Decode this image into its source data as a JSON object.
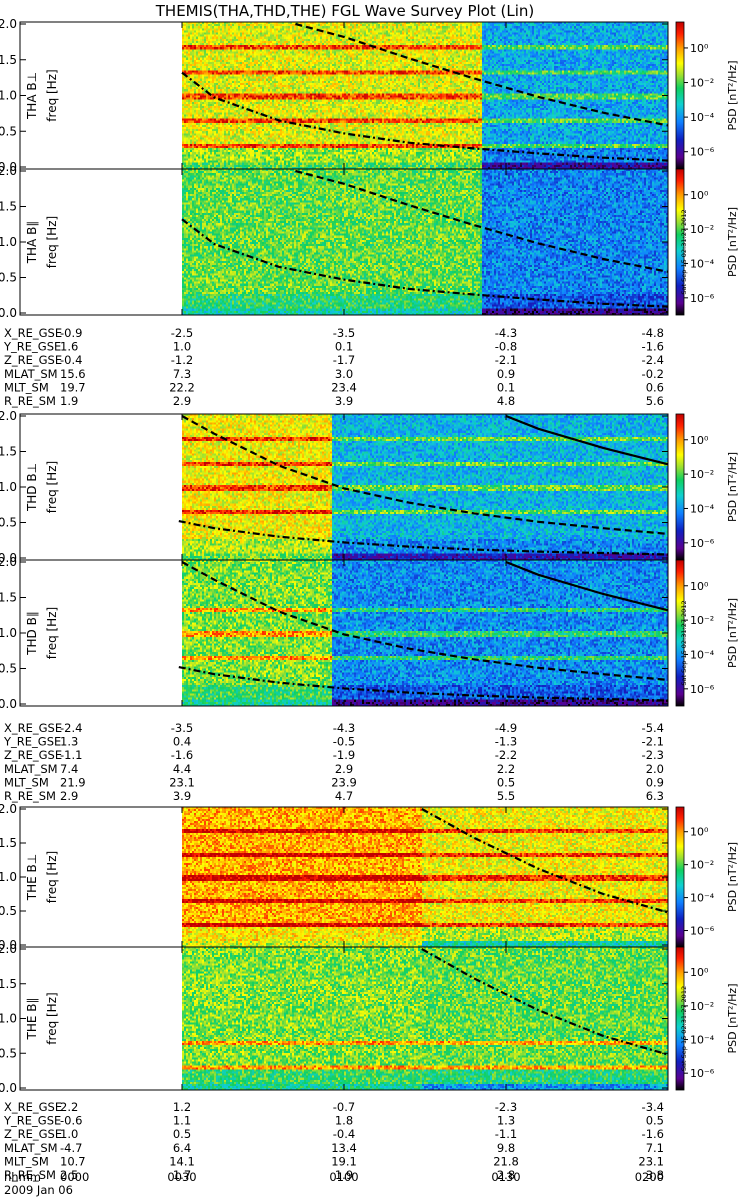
{
  "title": "THEMIS(THA,THD,THE) FGL Wave Survey Plot (Lin)",
  "timestamp_label": "Sat Sep 15 02:31:27 2012",
  "chart_data": {
    "type": "heatmap",
    "x_time_labels": [
      "0000",
      "0030",
      "0100",
      "0130",
      "0200"
    ],
    "x_hours": [
      0,
      0.5,
      1.0,
      1.5,
      2.0
    ],
    "x_axis_label": "hhmm",
    "date": "2009 Jan 06",
    "freq_axis_label": "freq [Hz]",
    "freq_range": [
      0,
      2.0
    ],
    "freq_ticks": [
      "0.0",
      "0.5",
      "1.0",
      "1.5",
      "2.0"
    ],
    "colorbar": {
      "label": "PSD [nT²/Hz]",
      "scale": "log",
      "range_exp": [
        -7,
        1.5
      ],
      "ticks": [
        "10⁰",
        "10⁻²",
        "10⁻⁴",
        "10⁻⁶"
      ],
      "tick_exps": [
        0,
        -2,
        -4,
        -6
      ],
      "colors": [
        "#000000",
        "#5a0090",
        "#1020c0",
        "#1080ff",
        "#10d0d0",
        "#10d060",
        "#a0e030",
        "#ffff00",
        "#ffa000",
        "#ff2000",
        "#c00000"
      ]
    },
    "panels": [
      {
        "name": "THA B⊥",
        "data_start_h": 0.5,
        "regime_change_h": 1.42,
        "left_intensity": 0.7,
        "right_intensity": 0.38,
        "lines_h": [
          1.67,
          1.33,
          1.0,
          0.67,
          0.33
        ],
        "curves": [
          {
            "style": "dash",
            "points": [
              [
                0.85,
                2.0
              ],
              [
                1.0,
                1.82
              ],
              [
                1.2,
                1.52
              ],
              [
                1.4,
                1.24
              ],
              [
                1.6,
                0.98
              ],
              [
                1.8,
                0.76
              ],
              [
                2.0,
                0.58
              ]
            ]
          },
          {
            "style": "dashdot",
            "points": [
              [
                0.5,
                1.32
              ],
              [
                0.6,
                0.97
              ],
              [
                0.8,
                0.65
              ],
              [
                1.0,
                0.47
              ],
              [
                1.2,
                0.34
              ],
              [
                1.4,
                0.26
              ],
              [
                1.6,
                0.19
              ],
              [
                1.8,
                0.13
              ],
              [
                2.0,
                0.09
              ]
            ]
          }
        ]
      },
      {
        "name": "THA B∥",
        "data_start_h": 0.5,
        "regime_change_h": 1.42,
        "left_intensity": 0.6,
        "right_intensity": 0.33,
        "lines_h": [],
        "curves": [
          {
            "style": "dash",
            "points": [
              [
                0.85,
                2.0
              ],
              [
                1.0,
                1.82
              ],
              [
                1.2,
                1.52
              ],
              [
                1.4,
                1.24
              ],
              [
                1.6,
                0.98
              ],
              [
                1.8,
                0.76
              ],
              [
                2.0,
                0.58
              ]
            ]
          },
          {
            "style": "dashdot",
            "points": [
              [
                0.5,
                1.32
              ],
              [
                0.6,
                0.97
              ],
              [
                0.8,
                0.65
              ],
              [
                1.0,
                0.47
              ],
              [
                1.2,
                0.34
              ],
              [
                1.4,
                0.26
              ],
              [
                1.6,
                0.19
              ],
              [
                1.8,
                0.13
              ],
              [
                2.0,
                0.09
              ]
            ]
          }
        ]
      },
      {
        "name": "THD B⊥",
        "data_start_h": 0.5,
        "regime_change_h": 0.96,
        "left_intensity": 0.72,
        "right_intensity": 0.4,
        "lines_h": [
          1.67,
          1.33,
          1.0,
          0.67
        ],
        "curves": [
          {
            "style": "solid",
            "points": [
              [
                1.5,
                2.0
              ],
              [
                1.6,
                1.82
              ],
              [
                1.8,
                1.55
              ],
              [
                2.0,
                1.32
              ]
            ]
          },
          {
            "style": "dash",
            "points": [
              [
                0.5,
                2.0
              ],
              [
                0.6,
                1.75
              ],
              [
                0.8,
                1.3
              ],
              [
                1.0,
                0.98
              ],
              [
                1.2,
                0.78
              ],
              [
                1.4,
                0.63
              ],
              [
                1.6,
                0.51
              ],
              [
                1.8,
                0.42
              ],
              [
                2.0,
                0.34
              ]
            ]
          },
          {
            "style": "dashdot",
            "points": [
              [
                0.49,
                0.52
              ],
              [
                0.6,
                0.42
              ],
              [
                0.8,
                0.3
              ],
              [
                1.0,
                0.22
              ],
              [
                1.2,
                0.16
              ],
              [
                1.4,
                0.12
              ],
              [
                1.6,
                0.09
              ],
              [
                1.8,
                0.07
              ],
              [
                2.0,
                0.05
              ]
            ]
          }
        ]
      },
      {
        "name": "THD B∥",
        "data_start_h": 0.5,
        "regime_change_h": 0.96,
        "left_intensity": 0.62,
        "right_intensity": 0.34,
        "lines_h": [
          1.33,
          1.0,
          0.67
        ],
        "curves": [
          {
            "style": "solid",
            "points": [
              [
                1.5,
                2.0
              ],
              [
                1.6,
                1.82
              ],
              [
                1.8,
                1.55
              ],
              [
                2.0,
                1.32
              ]
            ]
          },
          {
            "style": "dash",
            "points": [
              [
                0.5,
                2.0
              ],
              [
                0.6,
                1.75
              ],
              [
                0.8,
                1.3
              ],
              [
                1.0,
                0.98
              ],
              [
                1.2,
                0.78
              ],
              [
                1.4,
                0.63
              ],
              [
                1.6,
                0.51
              ],
              [
                1.8,
                0.42
              ],
              [
                2.0,
                0.34
              ]
            ]
          },
          {
            "style": "dashdot",
            "points": [
              [
                0.49,
                0.52
              ],
              [
                0.6,
                0.42
              ],
              [
                0.8,
                0.3
              ],
              [
                1.0,
                0.22
              ],
              [
                1.2,
                0.16
              ],
              [
                1.4,
                0.12
              ],
              [
                1.6,
                0.09
              ],
              [
                1.8,
                0.07
              ],
              [
                2.0,
                0.05
              ]
            ]
          }
        ]
      },
      {
        "name": "THE B⊥",
        "data_start_h": 0.5,
        "regime_change_h": 1.24,
        "left_intensity": 0.8,
        "right_intensity": 0.72,
        "lines_h": [
          1.67,
          1.33,
          1.0,
          0.67,
          0.33
        ],
        "curves": [
          {
            "style": "dashdot",
            "points": [
              [
                1.24,
                2.0
              ],
              [
                1.4,
                1.58
              ],
              [
                1.6,
                1.12
              ],
              [
                1.8,
                0.75
              ],
              [
                2.0,
                0.48
              ]
            ]
          }
        ]
      },
      {
        "name": "THE B∥",
        "data_start_h": 0.5,
        "regime_change_h": 1.24,
        "left_intensity": 0.62,
        "right_intensity": 0.6,
        "lines_h": [
          0.67,
          0.33
        ],
        "curves": [
          {
            "style": "dashdot",
            "points": [
              [
                1.24,
                2.0
              ],
              [
                1.4,
                1.58
              ],
              [
                1.6,
                1.12
              ],
              [
                1.8,
                0.75
              ],
              [
                2.0,
                0.48
              ]
            ]
          }
        ]
      }
    ]
  },
  "orbit_tables": [
    {
      "rows": [
        {
          "label": "X_RE_GSE",
          "values": [
            "-0.9",
            "-2.5",
            "-3.5",
            "-4.3",
            "-4.8"
          ]
        },
        {
          "label": "Y_RE_GSE",
          "values": [
            "1.6",
            "1.0",
            "0.1",
            "-0.8",
            "-1.6"
          ]
        },
        {
          "label": "Z_RE_GSE",
          "values": [
            "-0.4",
            "-1.2",
            "-1.7",
            "-2.1",
            "-2.4"
          ]
        },
        {
          "label": "MLAT_SM",
          "values": [
            "15.6",
            "7.3",
            "3.0",
            "0.9",
            "-0.2"
          ]
        },
        {
          "label": "MLT_SM",
          "values": [
            "19.7",
            "22.2",
            "23.4",
            "0.1",
            "0.6"
          ]
        },
        {
          "label": "R_RE_SM",
          "values": [
            "1.9",
            "2.9",
            "3.9",
            "4.8",
            "5.6"
          ]
        }
      ]
    },
    {
      "rows": [
        {
          "label": "X_RE_GSE",
          "values": [
            "-2.4",
            "-3.5",
            "-4.3",
            "-4.9",
            "-5.4"
          ]
        },
        {
          "label": "Y_RE_GSE",
          "values": [
            "1.3",
            "0.4",
            "-0.5",
            "-1.3",
            "-2.1"
          ]
        },
        {
          "label": "Z_RE_GSE",
          "values": [
            "-1.1",
            "-1.6",
            "-1.9",
            "-2.2",
            "-2.3"
          ]
        },
        {
          "label": "MLAT_SM",
          "values": [
            "7.4",
            "4.4",
            "2.9",
            "2.2",
            "2.0"
          ]
        },
        {
          "label": "MLT_SM",
          "values": [
            "21.9",
            "23.1",
            "23.9",
            "0.5",
            "0.9"
          ]
        },
        {
          "label": "R_RE_SM",
          "values": [
            "2.9",
            "3.9",
            "4.7",
            "5.5",
            "6.3"
          ]
        }
      ]
    },
    {
      "rows": [
        {
          "label": "X_RE_GSE",
          "values": [
            "2.2",
            "1.2",
            "-0.7",
            "-2.3",
            "-3.4"
          ]
        },
        {
          "label": "Y_RE_GSE",
          "values": [
            "-0.6",
            "1.1",
            "1.8",
            "1.3",
            "0.5"
          ]
        },
        {
          "label": "Z_RE_GSE",
          "values": [
            "1.0",
            "0.5",
            "-0.4",
            "-1.1",
            "-1.6"
          ]
        },
        {
          "label": "MLAT_SM",
          "values": [
            "-4.7",
            "6.4",
            "13.4",
            "9.8",
            "7.1"
          ]
        },
        {
          "label": "MLT_SM",
          "values": [
            "10.7",
            "14.1",
            "19.1",
            "21.8",
            "23.1"
          ]
        },
        {
          "label": "R_RE_SM",
          "values": [
            "2.5",
            "1.7",
            "1.9",
            "2.8",
            "3.8"
          ]
        }
      ]
    }
  ]
}
